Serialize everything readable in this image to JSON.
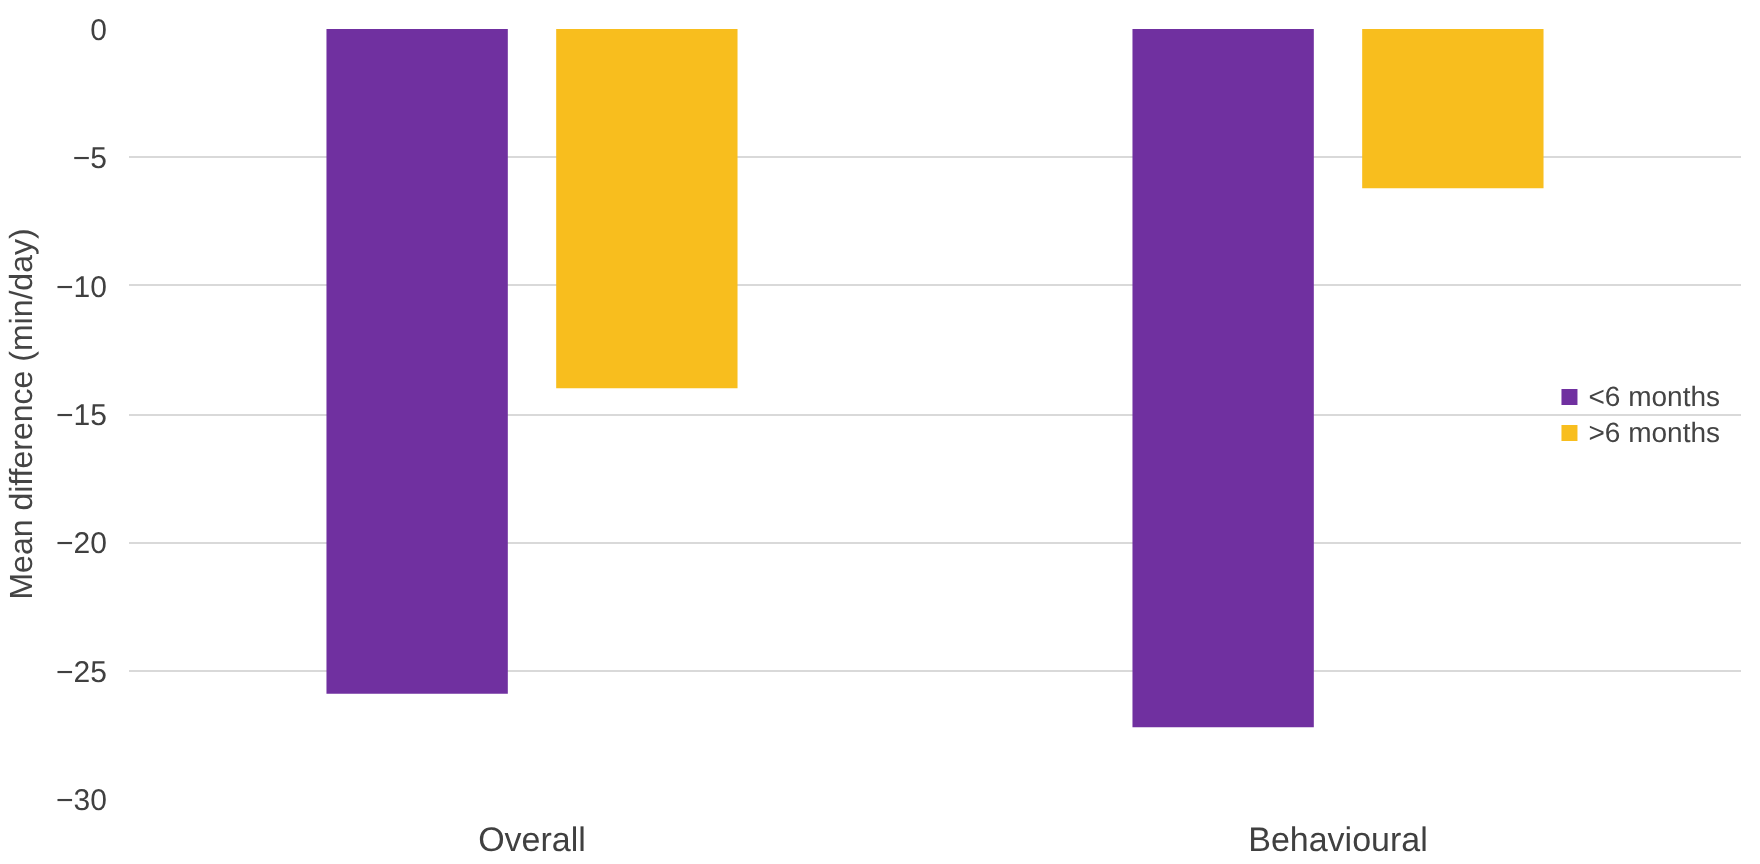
{
  "chart_data": {
    "type": "bar",
    "ylabel": "Mean difference (min/day)",
    "categories": [
      "Overall",
      "Behavioural"
    ],
    "series": [
      {
        "name": "<6 months",
        "color": "#7030a0",
        "values": [
          -25.9,
          -27.2
        ]
      },
      {
        "name": ">6 months",
        "color": "#f8be1e",
        "values": [
          -14.0,
          -6.2
        ]
      }
    ],
    "ylim": [
      -30,
      0
    ],
    "yticks": [
      -30,
      -25,
      -20,
      -15,
      -10,
      -5,
      0
    ],
    "grid": "y",
    "legend": "right"
  }
}
